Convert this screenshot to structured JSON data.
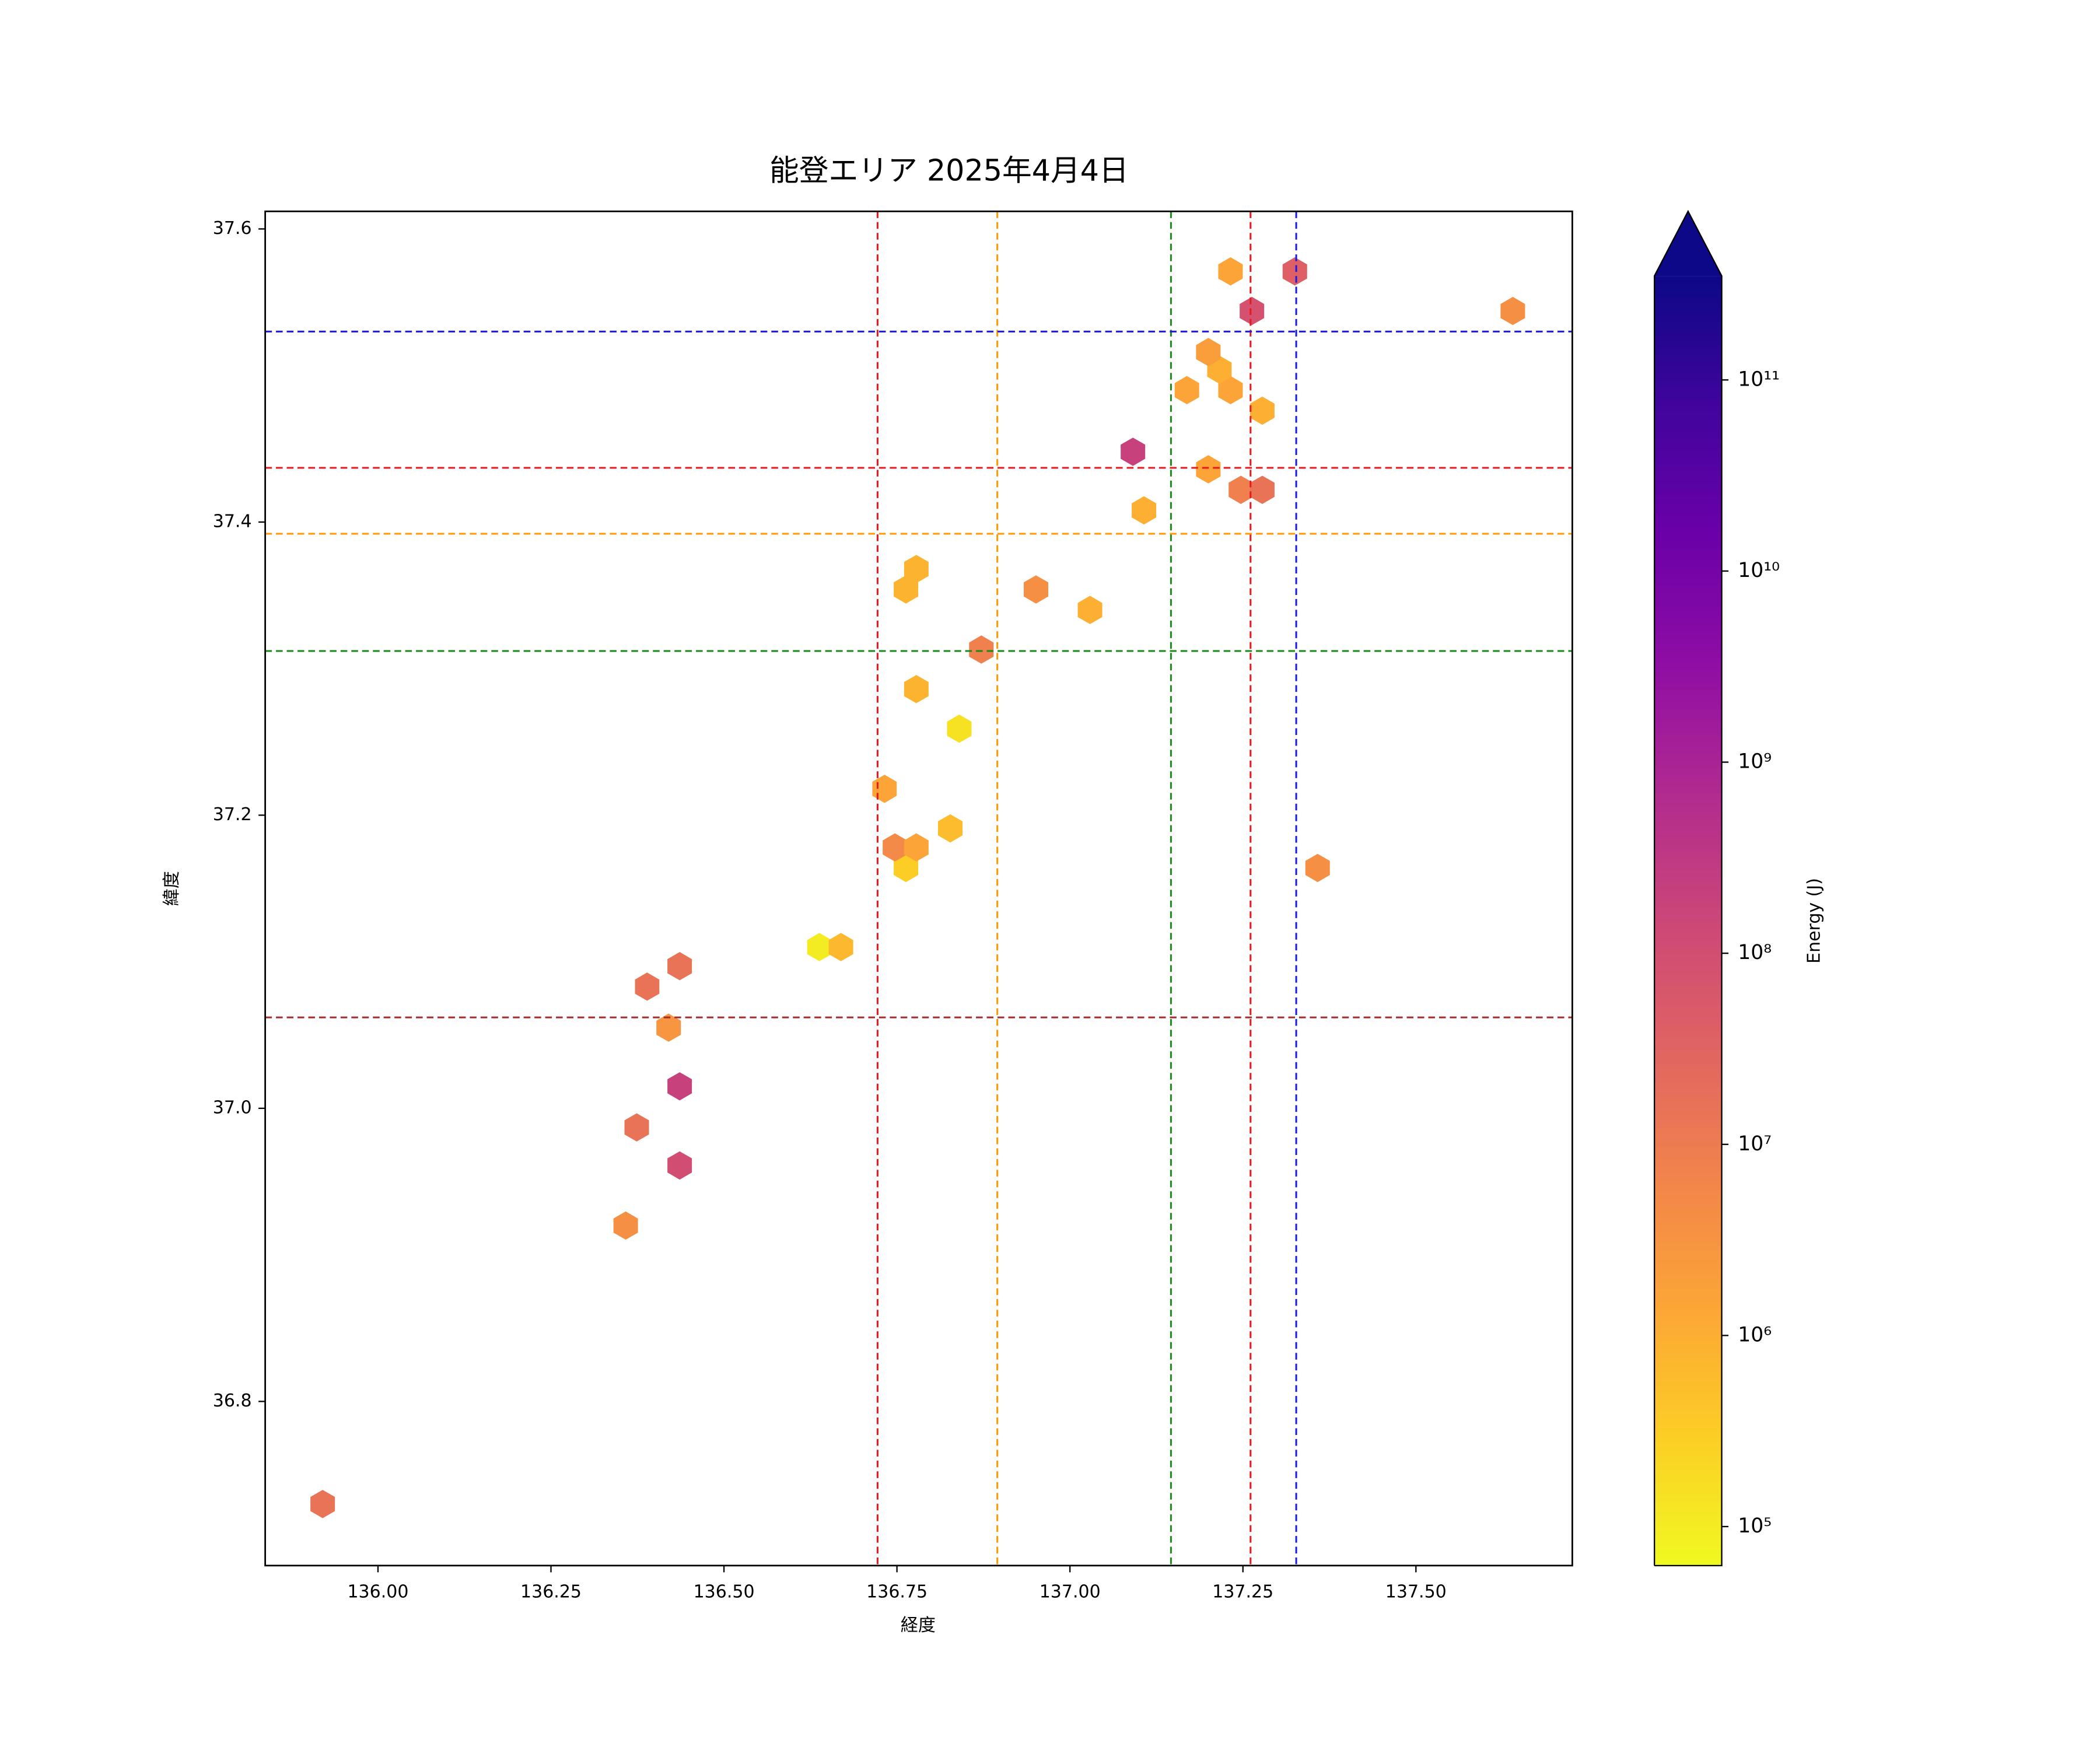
{
  "chart_data": {
    "type": "hexbin",
    "title": "能登エリア 2025年4月4日",
    "x_label": "経度",
    "y_label": "緯度",
    "colorbar_label": "Energy (J)",
    "colormap": "plasma_r",
    "color_scale": "log",
    "colorbar_extend": "max",
    "x": [
      135.92,
      136.358,
      136.374,
      136.436,
      136.436,
      136.42,
      136.389,
      136.436,
      136.638,
      136.669,
      136.763,
      136.747,
      136.778,
      136.827,
      136.732,
      136.84,
      136.778,
      136.872,
      136.763,
      136.778,
      136.951,
      137.029,
      137.107,
      137.091,
      137.2,
      137.247,
      137.278,
      137.278,
      137.169,
      137.232,
      137.216,
      137.2,
      137.263,
      137.232,
      137.325,
      137.64,
      137.358
    ],
    "y": [
      36.73,
      36.92,
      36.987,
      36.961,
      37.015,
      37.055,
      37.083,
      37.097,
      37.11,
      37.11,
      37.164,
      37.178,
      37.178,
      37.191,
      37.218,
      37.259,
      37.286,
      37.313,
      37.354,
      37.368,
      37.354,
      37.34,
      37.408,
      37.448,
      37.436,
      37.422,
      37.422,
      37.476,
      37.49,
      37.49,
      37.504,
      37.516,
      37.544,
      37.571,
      37.571,
      37.544,
      37.164
    ],
    "values": [
      15000000,
      4000000,
      15000000,
      100000000,
      200000000,
      3000000,
      15000000,
      15000000,
      100000,
      700000,
      300000,
      5000000,
      1500000,
      600000,
      1500000,
      150000,
      800000,
      8000000,
      800000,
      800000,
      4000000,
      1000000,
      1000000,
      200000000,
      1500000,
      8000000,
      15000000,
      1000000,
      1500000,
      1500000,
      1000000,
      2000000,
      80000000,
      1500000,
      40000000,
      4000000,
      4000000
    ],
    "xlim": [
      135.837,
      137.726
    ],
    "ylim": [
      36.688,
      37.612
    ],
    "xticks": [
      {
        "value": 136,
        "label": "136.00"
      },
      {
        "value": 136.25,
        "label": "136.25"
      },
      {
        "value": 136.5,
        "label": "136.50"
      },
      {
        "value": 136.75,
        "label": "136.75"
      },
      {
        "value": 137,
        "label": "137.00"
      },
      {
        "value": 137.25,
        "label": "137.25"
      },
      {
        "value": 137.5,
        "label": "137.50"
      }
    ],
    "yticks": [
      36.8,
      {
        "value": 37,
        "label": "37.0"
      },
      37.2,
      37.4,
      37.6
    ],
    "clim": [
      62500,
      350000000000
    ],
    "cticks": [
      {
        "value": 100000,
        "label": "10⁵"
      },
      {
        "value": 1000000,
        "label": "10⁶"
      },
      {
        "value": 10000000,
        "label": "10⁷"
      },
      {
        "value": 100000000,
        "label": "10⁸"
      },
      {
        "value": 1000000000,
        "label": "10⁹"
      },
      {
        "value": 10000000000,
        "label": "10¹⁰"
      },
      {
        "value": 100000000000,
        "label": "10¹¹"
      }
    ],
    "vlines": [
      {
        "value": 136.722,
        "color": "#e41a1c"
      },
      {
        "value": 136.895,
        "color": "#ff9900"
      },
      {
        "value": 137.146,
        "color": "#1a8a1a"
      },
      {
        "value": 137.261,
        "color": "#e41a1c"
      },
      {
        "value": 137.327,
        "color": "#1a1ae0"
      }
    ],
    "hlines": [
      {
        "value": 37.53,
        "color": "#1a1ae0"
      },
      {
        "value": 37.437,
        "color": "#e41a1c"
      },
      {
        "value": 37.392,
        "color": "#ff9900"
      },
      {
        "value": 37.312,
        "color": "#1a8a1a"
      },
      {
        "value": 37.062,
        "color": "#a52a2a"
      }
    ]
  }
}
